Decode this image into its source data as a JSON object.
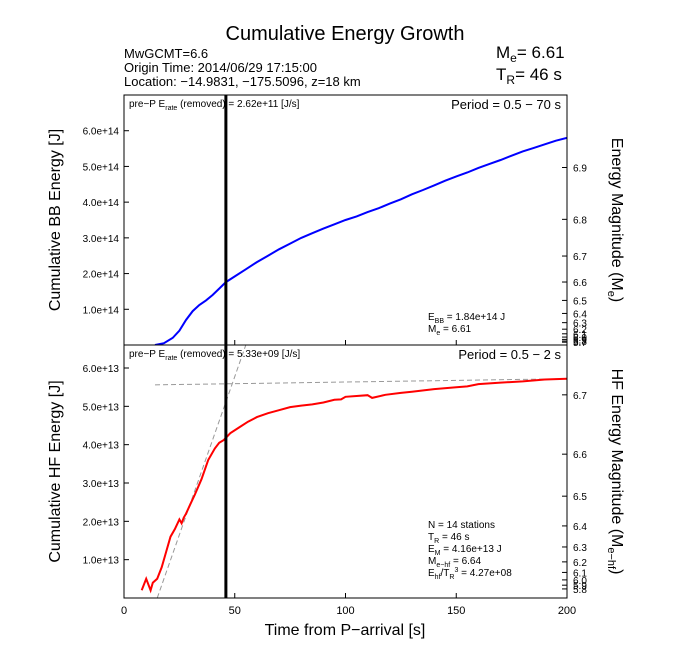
{
  "chart_data": {
    "type": "line",
    "title": "Cumulative Energy Growth",
    "event": {
      "source": "MwGCMT=6.6",
      "origin_time": "Origin Time: 2014/06/29 17:15:00",
      "location": "Location: −14.9831, −175.5096, z=18 km",
      "me_label": "M",
      "me_sub": "e",
      "me_value": "= 6.61",
      "tr_label": "T",
      "tr_sub": "R",
      "tr_value": "= 46 s"
    },
    "xlabel": "Time from P−arrival [s]",
    "xlim": [
      0,
      200
    ],
    "xticks": [
      "0",
      "50",
      "100",
      "150",
      "200"
    ],
    "marker_line_x": 46,
    "panels": [
      {
        "id": "bb",
        "ylabel": "Cumulative BB Energy [J]",
        "ylabel_right": "Energy Magnitude (M",
        "ylabel_right_sub": "e",
        "ylabel_right_end": ")",
        "ylim": [
          0,
          700000000000000.0
        ],
        "yticks": [
          "1.0e+14",
          "2.0e+14",
          "3.0e+14",
          "4.0e+14",
          "5.0e+14",
          "6.0e+14"
        ],
        "right_ticks": [
          "6.9",
          "6.8",
          "6.7",
          "6.6",
          "6.5",
          "6.4",
          "6.3",
          "6.2",
          "6.1",
          "6.0",
          "5.9",
          "5.8",
          "5.7"
        ],
        "note_left": "pre−P E",
        "note_sub": "rate",
        "note_right": " (removed) = 2.62e+11 [J/s]",
        "period": "Period = 0.5 − 70 s",
        "info": [
          {
            "main": "E",
            "sub": "BB",
            "rest": " = 1.84e+14 J"
          },
          {
            "main": "M",
            "sub": "e",
            "rest": " = 6.61"
          }
        ],
        "series": [
          {
            "color": "#0000ff",
            "x": [
              14,
              18,
              22,
              25,
              28,
              31,
              34,
              37,
              40,
              43,
              46,
              50,
              55,
              60,
              65,
              70,
              75,
              80,
              85,
              90,
              95,
              100,
              105,
              110,
              115,
              120,
              125,
              130,
              135,
              140,
              145,
              150,
              155,
              160,
              165,
              170,
              175,
              180,
              185,
              190,
              195,
              200
            ],
            "y": [
              0,
              5000000000000.0,
              20000000000000.0,
              40000000000000.0,
              70000000000000.0,
              95000000000000.0,
              112000000000000.0,
              125000000000000.0,
              140000000000000.0,
              158000000000000.0,
              176000000000000.0,
              192000000000000.0,
              212000000000000.0,
              232000000000000.0,
              250000000000000.0,
              268000000000000.0,
              284000000000000.0,
              300000000000000.0,
              313000000000000.0,
              326000000000000.0,
              338000000000000.0,
              350000000000000.0,
              360000000000000.0,
              372000000000000.0,
              383000000000000.0,
              396000000000000.0,
              408000000000000.0,
              422000000000000.0,
              434000000000000.0,
              447000000000000.0,
              460000000000000.0,
              472000000000000.0,
              483000000000000.0,
              496000000000000.0,
              507000000000000.0,
              518000000000000.0,
              530000000000000.0,
              542000000000000.0,
              552000000000000.0,
              562000000000000.0,
              572000000000000.0,
              580000000000000.0
            ]
          }
        ]
      },
      {
        "id": "hf",
        "ylabel": "Cumulative HF Energy [J]",
        "ylabel_right": "HF Energy Magnitude (M",
        "ylabel_right_sub": "e−hf",
        "ylabel_right_end": ")",
        "ylim": [
          0,
          66000000000000.0
        ],
        "yticks": [
          "1.0e+13",
          "2.0e+13",
          "3.0e+13",
          "4.0e+13",
          "5.0e+13",
          "6.0e+13"
        ],
        "right_ticks": [
          "6.7",
          "6.6",
          "6.5",
          "6.4",
          "6.3",
          "6.2",
          "6.1",
          "6.0",
          "5.9",
          "5.8"
        ],
        "note_left": "pre−P E",
        "note_sub": "rate",
        "note_right": " (removed) = 5.33e+09 [J/s]",
        "period": "Period = 0.5 − 2 s",
        "info": [
          {
            "main": "N = 14 stations",
            "sub": "",
            "rest": ""
          },
          {
            "main": "T",
            "sub": "R",
            "rest": " = 46  s"
          },
          {
            "main": "E",
            "sub": "M",
            "rest": " = 4.16e+13 J"
          },
          {
            "main": "M",
            "sub": "e−hf",
            "rest": " = 6.64"
          },
          {
            "main": "E",
            "sub": "hf",
            "rest": "/T",
            "sub2": "R",
            "sup": "3",
            "rest2": " =  4.27e+08"
          }
        ],
        "series": [
          {
            "color": "#ff0000",
            "x": [
              8,
              10,
              12,
              13,
              15,
              17,
              19,
              21,
              23,
              25,
              26,
              27,
              28,
              30,
              32,
              35,
              38,
              41,
              43,
              45,
              46,
              48,
              52,
              56,
              60,
              65,
              70,
              75,
              80,
              85,
              90,
              95,
              98,
              100,
              105,
              110,
              112,
              118,
              125,
              130,
              140,
              150,
              155,
              160,
              170,
              180,
              190,
              200
            ],
            "y": [
              2000000000000.0,
              5000000000000.0,
              2000000000000.0,
              4000000000000.0,
              5000000000000.0,
              8000000000000.0,
              12000000000000.0,
              16000000000000.0,
              18000000000000.0,
              20500000000000.0,
              19500000000000.0,
              21000000000000.0,
              22000000000000.0,
              24500000000000.0,
              27000000000000.0,
              31000000000000.0,
              36000000000000.0,
              39000000000000.0,
              40500000000000.0,
              41200000000000.0,
              41800000000000.0,
              43000000000000.0,
              44500000000000.0,
              46000000000000.0,
              47200000000000.0,
              48200000000000.0,
              49000000000000.0,
              49800000000000.0,
              50200000000000.0,
              50500000000000.0,
              51000000000000.0,
              51700000000000.0,
              51800000000000.0,
              52500000000000.0,
              52700000000000.0,
              52900000000000.0,
              52200000000000.0,
              53000000000000.0,
              53500000000000.0,
              53800000000000.0,
              54500000000000.0,
              55000000000000.0,
              55200000000000.0,
              55800000000000.0,
              56200000000000.0,
              56500000000000.0,
              57000000000000.0,
              57200000000000.0
            ]
          }
        ],
        "guide_lines": [
          {
            "x": [
              14,
              200
            ],
            "y": [
              55600000000000.0,
              57200000000000.0
            ]
          },
          {
            "x": [
              15,
              55
            ],
            "y": [
              0.0,
              66000000000000.0
            ]
          }
        ]
      }
    ]
  }
}
